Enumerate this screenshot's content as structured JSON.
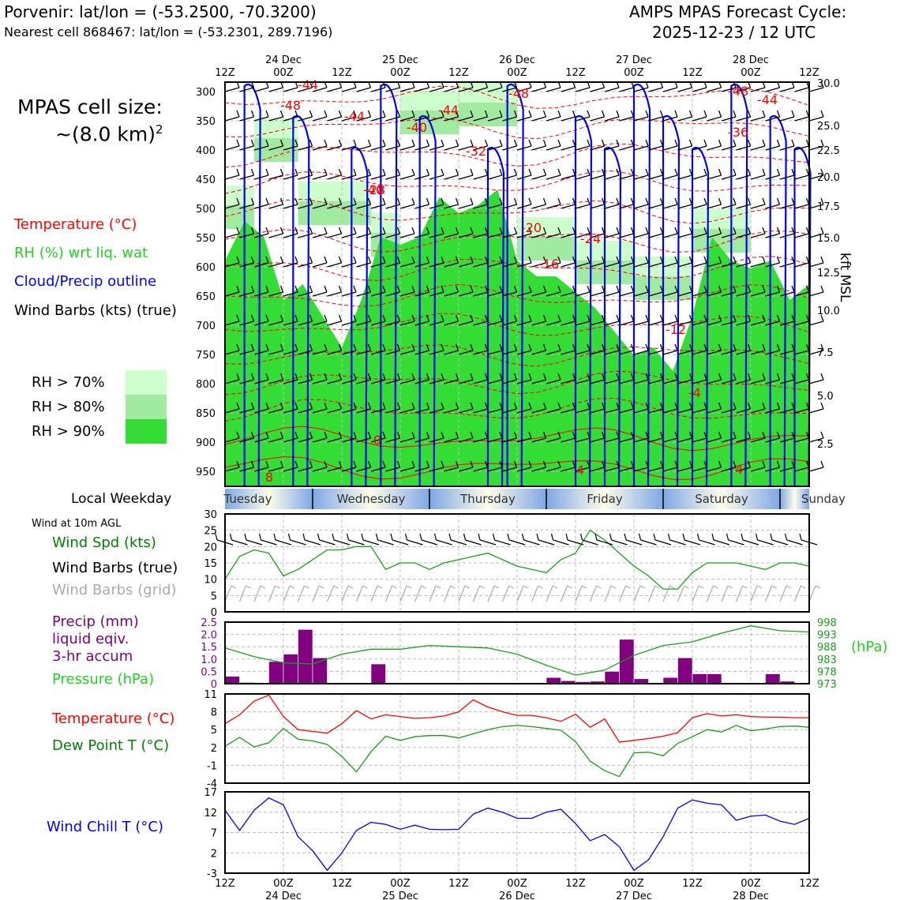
{
  "header": {
    "location_line": "Porvenir: lat/lon = (-53.2500, -70.3200)",
    "cell_line": "Nearest cell 868467: lat/lon = (-53.2301, 289.7196)",
    "cycle_title": "AMPS MPAS Forecast Cycle:",
    "cycle_date": "2025-12-23 / 12 UTC"
  },
  "cell_size": {
    "label": "MPAS cell size:",
    "value": "~(8.0 km)",
    "sup": "2"
  },
  "time_axis": {
    "ticks": [
      "12Z",
      "00Z",
      "12Z",
      "00Z",
      "12Z",
      "00Z",
      "12Z",
      "00Z",
      "12Z",
      "00Z",
      "12Z"
    ],
    "dates": [
      "24 Dec",
      "25 Dec",
      "26 Dec",
      "27 Dec",
      "28 Dec"
    ]
  },
  "weekdays": {
    "label": "Local Weekday",
    "days": [
      "Tuesday",
      "Wednesday",
      "Thursday",
      "Friday",
      "Saturday",
      "Sunday"
    ]
  },
  "colors": {
    "temp": "#ff0000",
    "rh": "#22dd22",
    "cloud": "#0000ff",
    "barb": "#000000",
    "precip": "#800080",
    "pressure": "#00c000",
    "dew": "#008000",
    "chill": "#0000ff",
    "grid_barb": "#aaaaaa"
  },
  "sounding": {
    "legend": {
      "temperature": "Temperature (°C)",
      "rh": "RH (%) wrt liq. wat",
      "cloud": "Cloud/Precip outline",
      "wind": "Wind Barbs (kts) (true)"
    },
    "rh_legend": [
      {
        "label": "RH > 70%",
        "color": "#ccffcc"
      },
      {
        "label": "RH > 80%",
        "color": "#a0eba0"
      },
      {
        "label": "RH > 90%",
        "color": "#33dd33"
      }
    ],
    "pressure_levels": [
      "300",
      "350",
      "400",
      "450",
      "500",
      "550",
      "600",
      "650",
      "700",
      "750",
      "800",
      "850",
      "900",
      "950"
    ],
    "height_label": "kft MSL",
    "height_ticks": [
      "30.0",
      "25.0",
      "22.5",
      "20.0",
      "17.5",
      "15.0",
      "12.5",
      "10.0",
      "7.5",
      "5.0",
      "2.5"
    ],
    "temp_contour_labels": [
      "-44",
      "-48",
      "-44",
      "-40",
      "-48",
      "-44",
      "-48",
      "-44",
      "-40",
      "-36",
      "-32",
      "-28",
      "-24",
      "-20",
      "-16",
      "-12",
      "0",
      "8",
      "4",
      "4",
      "-4"
    ]
  },
  "chart_data": [
    {
      "type": "line",
      "title": "Wind at 10m AGL",
      "labels": {
        "speed": "Wind Spd (kts)",
        "barbs_true": "Wind Barbs (true)",
        "barbs_grid": "Wind Barbs (grid)"
      },
      "ylim": [
        0,
        30
      ],
      "yticks": [
        "30",
        "25",
        "20",
        "15",
        "10",
        "5",
        "0"
      ],
      "x_hours": [
        0,
        3,
        6,
        9,
        12,
        15,
        18,
        21,
        24,
        27,
        30,
        33,
        36,
        39,
        42,
        45,
        48,
        51,
        54,
        57,
        60,
        63,
        66,
        69,
        72,
        75,
        78,
        81,
        84,
        87,
        90,
        93,
        96,
        99,
        102,
        105,
        108,
        111,
        114,
        117,
        120
      ],
      "series": [
        {
          "name": "Wind Spd (kts)",
          "values": [
            10,
            17,
            19,
            18,
            11,
            13,
            16,
            19,
            19,
            20,
            20,
            13,
            15,
            15,
            13,
            15,
            16,
            17,
            18,
            16,
            14,
            13,
            12,
            16,
            18,
            25,
            22,
            18,
            14,
            11,
            7,
            7,
            12,
            15,
            15,
            15,
            14,
            13,
            15,
            15,
            14
          ]
        }
      ]
    },
    {
      "type": "bar",
      "title": "Precip / Pressure",
      "labels": {
        "precip": "Precip (mm)",
        "precip2": "liquid eqiv.",
        "precip3": "3-hr accum",
        "pressure": "Pressure (hPa)",
        "pressure_unit": "(hPa)"
      },
      "precip_ylim": [
        0,
        2.5
      ],
      "precip_yticks": [
        "2.5",
        "2.0",
        "1.5",
        "1.0",
        "0.5",
        "0"
      ],
      "pressure_ylim": [
        973,
        998
      ],
      "pressure_yticks": [
        "998",
        "993",
        "988",
        "983",
        "978",
        "973"
      ],
      "precip_x_hours": [
        0,
        3,
        9,
        12,
        15,
        18,
        30,
        66,
        69,
        72,
        75,
        78,
        81,
        84,
        87,
        90,
        93,
        96,
        99,
        102,
        105,
        111,
        114
      ],
      "precip_values": [
        0.3,
        0.05,
        0.9,
        1.2,
        2.2,
        1.05,
        0.8,
        0.25,
        0.12,
        0.08,
        0.1,
        0.5,
        1.8,
        0.2,
        0.0,
        0.25,
        1.05,
        0.4,
        0.4,
        0.0,
        0.0,
        0.4,
        0.1
      ],
      "pressure_x_hours": [
        0,
        6,
        12,
        18,
        24,
        30,
        36,
        42,
        48,
        54,
        60,
        66,
        72,
        78,
        84,
        90,
        96,
        102,
        108,
        114,
        120
      ],
      "pressure_values": [
        987.5,
        984,
        981.5,
        981,
        985,
        987,
        987,
        988.5,
        988,
        987.5,
        985,
        980.5,
        976.5,
        978.5,
        984.5,
        988.5,
        990,
        993.5,
        996.5,
        994.5,
        994
      ]
    },
    {
      "type": "line",
      "title": "Temperature / Dew Point",
      "labels": {
        "temp": "Temperature (°C)",
        "dew": "Dew Point T (°C)"
      },
      "ylim": [
        -4,
        11
      ],
      "yticks": [
        "11",
        "8",
        "5",
        "2",
        "-1",
        "-4"
      ],
      "x_hours": [
        0,
        3,
        6,
        9,
        12,
        15,
        18,
        21,
        24,
        27,
        30,
        33,
        36,
        39,
        42,
        45,
        48,
        51,
        54,
        57,
        60,
        63,
        66,
        69,
        72,
        75,
        78,
        81,
        84,
        87,
        90,
        93,
        96,
        99,
        102,
        105,
        108,
        111,
        114,
        117,
        120
      ],
      "series": [
        {
          "name": "Temperature (°C)",
          "values": [
            6,
            7.5,
            9.8,
            10.8,
            7.2,
            5,
            4.7,
            4.4,
            6,
            8.2,
            6.8,
            7.5,
            7.2,
            6.9,
            7,
            7.3,
            8,
            10,
            8.8,
            8,
            7.4,
            7.4,
            7,
            6.4,
            7.6,
            5.4,
            6.8,
            2.9,
            3.2,
            3.5,
            3.9,
            4.5,
            7,
            7.7,
            7.3,
            7.5,
            7.2,
            7.1,
            7.1,
            7,
            7
          ]
        },
        {
          "name": "Dew Point T (°C)",
          "values": [
            2.2,
            3.7,
            2.1,
            2.8,
            5.2,
            3.4,
            3.1,
            2.5,
            0.5,
            -2.1,
            1.3,
            3.9,
            3.2,
            3.8,
            4,
            4,
            3.6,
            4.3,
            5,
            5.5,
            5.7,
            5.5,
            5.2,
            4.9,
            3,
            -0.3,
            -1.9,
            -2.9,
            1.1,
            1.2,
            0.6,
            2.7,
            3.8,
            5,
            4.6,
            5.7,
            4.8,
            5.1,
            5.5,
            5.6,
            5.4
          ]
        }
      ]
    },
    {
      "type": "line",
      "title": "Wind Chill",
      "labels": {
        "chill": "Wind Chill T (°C)"
      },
      "ylim": [
        -3,
        17
      ],
      "yticks": [
        "17",
        "12",
        "7",
        "2",
        "-3"
      ],
      "x_hours": [
        0,
        3,
        6,
        9,
        12,
        15,
        18,
        21,
        24,
        27,
        30,
        33,
        36,
        39,
        42,
        45,
        48,
        51,
        54,
        57,
        60,
        63,
        66,
        69,
        72,
        75,
        78,
        81,
        84,
        87,
        90,
        93,
        96,
        99,
        102,
        105,
        108,
        111,
        114,
        117,
        120
      ],
      "series": [
        {
          "name": "Wind Chill T (°C)",
          "values": [
            12.5,
            7.5,
            12.5,
            15.5,
            13.8,
            6,
            2.5,
            -2.3,
            2,
            7.5,
            9.5,
            9,
            7.8,
            8.8,
            7.8,
            7.7,
            7.8,
            11.5,
            13,
            12,
            10.5,
            10.5,
            12,
            12.7,
            9.2,
            5,
            6.5,
            3.5,
            -2.3,
            0.3,
            6,
            13,
            15,
            14.2,
            13.8,
            10,
            11,
            11.3,
            9.8,
            9,
            10.5
          ]
        }
      ]
    }
  ]
}
